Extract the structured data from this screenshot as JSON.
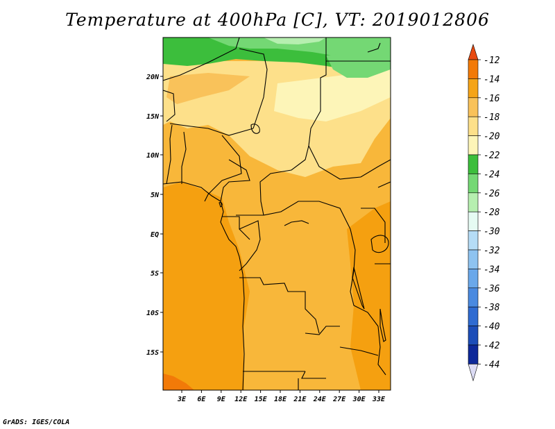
{
  "title": "Temperature at 400hPa [C], VT: 2019012806",
  "footer": "GrADS: IGES/COLA",
  "map": {
    "variable": "Temperature",
    "level": "400hPa",
    "units": "C",
    "valid_time": "2019012806",
    "lat_labels": [
      "20N",
      "15N",
      "10N",
      "5N",
      "EQ",
      "5S",
      "10S",
      "15S"
    ],
    "lon_labels": [
      "3E",
      "6E",
      "9E",
      "12E",
      "15E",
      "18E",
      "21E",
      "24E",
      "27E",
      "30E",
      "33E"
    ]
  },
  "colorbar": {
    "labels": [
      "-12",
      "-14",
      "-16",
      "-18",
      "-20",
      "-22",
      "-24",
      "-26",
      "-28",
      "-30",
      "-32",
      "-34",
      "-36",
      "-38",
      "-40",
      "-42",
      "-44"
    ],
    "colors": [
      "#e84a10",
      "#f27a08",
      "#f5a418",
      "#f9c25a",
      "#fde08a",
      "#fdf5b8",
      "#3cbe3c",
      "#74d874",
      "#b6efb0",
      "#e6fbf3",
      "#b5dcf6",
      "#8ec3f0",
      "#6aa8ea",
      "#4a8ae0",
      "#2f6bd1",
      "#1c4db8",
      "#0d2899",
      "#0a1066"
    ],
    "top_arrow_color": "#e84a10",
    "bottom_arrow_color": "#dcdcf5"
  },
  "colors": {
    "ocean": "#f5a010",
    "land_base": "#f8b73a",
    "border": "#000000"
  }
}
